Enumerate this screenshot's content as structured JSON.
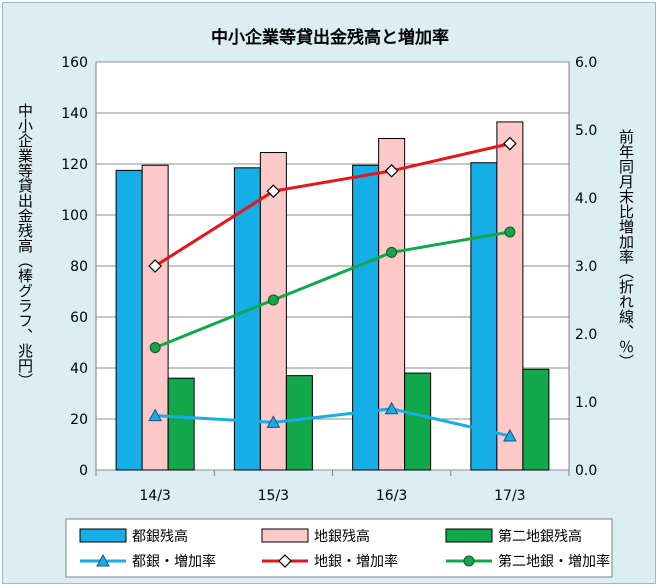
{
  "chart_data": {
    "type": "bar+line",
    "title": "中小企業等貸出金残高と増加率",
    "ylabel_left": "中小企業等貸出金残高（棒グラフ、兆円）",
    "ylabel_right": "前年同月末比増加率（折れ線、％）",
    "categories": [
      "14/3",
      "15/3",
      "16/3",
      "17/3"
    ],
    "y_left": {
      "lim": [
        0,
        160
      ],
      "ticks": [
        "0",
        "20",
        "40",
        "60",
        "80",
        "100",
        "120",
        "140",
        "160"
      ]
    },
    "y_right": {
      "lim": [
        0,
        6
      ],
      "ticks": [
        "0.0",
        "1.0",
        "2.0",
        "3.0",
        "4.0",
        "5.0",
        "6.0"
      ]
    },
    "bar_series": [
      {
        "name": "都銀残高",
        "values": [
          117.5,
          118.5,
          119.5,
          120.5
        ],
        "color": "#16aee6"
      },
      {
        "name": "地銀残高",
        "values": [
          119.5,
          124.5,
          130,
          136.5
        ],
        "color": "#fcc8c8"
      },
      {
        "name": "第二地銀残高",
        "values": [
          36,
          37,
          38,
          39.5
        ],
        "color": "#10a84a"
      }
    ],
    "line_series": [
      {
        "name": "都銀・増加率",
        "values": [
          0.8,
          0.7,
          0.9,
          0.5
        ],
        "color": "#16aee6",
        "marker": "triangle"
      },
      {
        "name": "地銀・増加率",
        "values": [
          3.0,
          4.1,
          4.4,
          4.8
        ],
        "color": "#e8141c",
        "marker": "diamond"
      },
      {
        "name": "第二地銀・増加率",
        "values": [
          1.8,
          2.5,
          3.2,
          3.5
        ],
        "color": "#10a84a",
        "marker": "circle"
      }
    ],
    "grid": "horizontal",
    "legend_placement": "bottom"
  }
}
